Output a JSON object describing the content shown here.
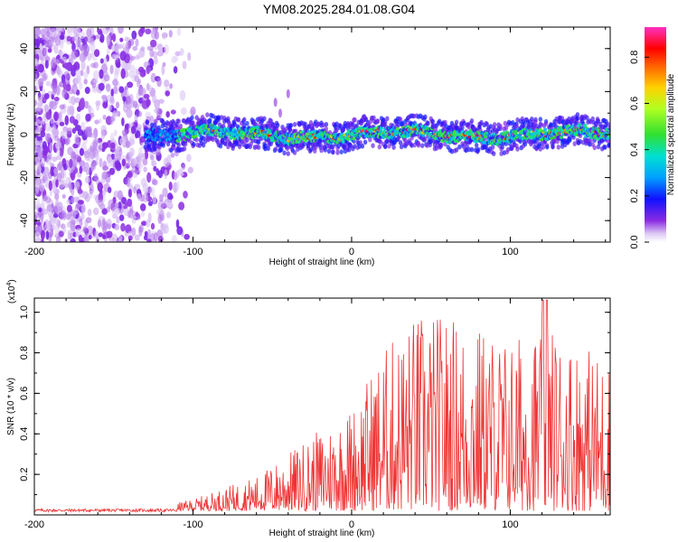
{
  "title": "YM08.2025.284.01.08.G04",
  "chart_data": [
    {
      "type": "heatmap",
      "name": "spectrogram",
      "xlabel": "Height of straight line (km)",
      "ylabel": "Frequency (Hz)",
      "xlim": [
        -200,
        163
      ],
      "ylim": [
        -50,
        50
      ],
      "xticks": [
        -200,
        -100,
        0,
        100
      ],
      "yticks": [
        -40,
        -20,
        0,
        20,
        40
      ],
      "colorbar": {
        "label": "Normalized spectral amplitude",
        "range": [
          0,
          0.93
        ],
        "ticks": [
          0.0,
          0.2,
          0.4,
          0.6,
          0.8
        ]
      },
      "signal_band_center_hz": 0,
      "signal_onset_km": -130,
      "noise_region_km": [
        -200,
        -105
      ]
    },
    {
      "type": "line",
      "name": "snr",
      "xlabel": "Height of straight line (km)",
      "ylabel": "SNR (10 * v/v)",
      "y_multiplier": "(x10",
      "y_multiplier_exp": "4",
      "y_multiplier_close": ")",
      "xlim": [
        -200,
        163
      ],
      "ylim": [
        0,
        1.07
      ],
      "xticks": [
        -200,
        -100,
        0,
        100
      ],
      "yticks": [
        0.2,
        0.4,
        0.6,
        0.8,
        1.0
      ],
      "color": "#ee3333",
      "envelope": {
        "x": [
          -200,
          -120,
          -100,
          -80,
          -60,
          -40,
          -20,
          0,
          20,
          40,
          60,
          80,
          100,
          120,
          140,
          163
        ],
        "y": [
          0.02,
          0.02,
          0.05,
          0.1,
          0.15,
          0.25,
          0.35,
          0.45,
          0.7,
          0.85,
          0.85,
          0.8,
          0.75,
          0.8,
          0.75,
          0.65
        ]
      }
    }
  ]
}
